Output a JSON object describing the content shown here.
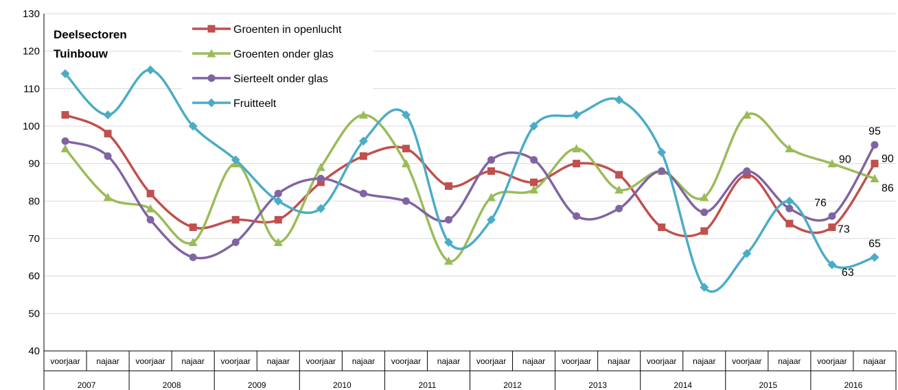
{
  "chart_data": {
    "type": "line",
    "title_lines": [
      "Deelsectoren",
      "Tuinbouw"
    ],
    "ylim": [
      40,
      130
    ],
    "yticks": [
      40,
      50,
      60,
      70,
      80,
      90,
      100,
      110,
      120,
      130
    ],
    "grid": true,
    "smooth": true,
    "legend_position": "top-left",
    "categories": [
      "voorjaar",
      "najaar",
      "voorjaar",
      "najaar",
      "voorjaar",
      "najaar",
      "voorjaar",
      "najaar",
      "voorjaar",
      "najaar",
      "voorjaar",
      "najaar",
      "voorjaar",
      "najaar",
      "voorjaar",
      "najaar",
      "voorjaar",
      "najaar",
      "voorjaar",
      "najaar"
    ],
    "years": [
      "2007",
      "2008",
      "2009",
      "2010",
      "2011",
      "2012",
      "2013",
      "2014",
      "2015",
      "2016"
    ],
    "series": [
      {
        "name": "Groenten in openlucht",
        "color": "#c0504d",
        "marker": "square",
        "values": [
          103,
          98,
          82,
          73,
          75,
          75,
          85,
          92,
          94,
          84,
          88,
          85,
          90,
          87,
          73,
          72,
          87,
          74,
          73,
          90
        ],
        "labels": [
          {
            "index": 18,
            "text": "73"
          },
          {
            "index": 19,
            "text": "90"
          }
        ]
      },
      {
        "name": "Groenten onder glas",
        "color": "#9bbb59",
        "marker": "triangle",
        "values": [
          94,
          81,
          78,
          69,
          90,
          69,
          89,
          103,
          90,
          64,
          81,
          83,
          94,
          83,
          88,
          81,
          103,
          94,
          90,
          86
        ],
        "labels": [
          {
            "index": 18,
            "text": "90"
          },
          {
            "index": 19,
            "text": "86"
          }
        ]
      },
      {
        "name": "Sierteelt onder glas",
        "color": "#8064a2",
        "marker": "circle",
        "values": [
          96,
          92,
          75,
          65,
          69,
          82,
          86,
          82,
          80,
          75,
          91,
          91,
          76,
          78,
          88,
          77,
          88,
          78,
          76,
          95
        ],
        "labels": [
          {
            "index": 18,
            "text": "76"
          },
          {
            "index": 19,
            "text": "95"
          }
        ]
      },
      {
        "name": "Fruitteelt",
        "color": "#4bacc6",
        "marker": "diamond",
        "values": [
          114,
          103,
          115,
          100,
          91,
          80,
          78,
          96,
          103,
          69,
          75,
          100,
          103,
          107,
          93,
          57,
          66,
          80,
          63,
          65
        ],
        "labels": [
          {
            "index": 18,
            "text": "63"
          },
          {
            "index": 19,
            "text": "65"
          }
        ]
      }
    ]
  }
}
